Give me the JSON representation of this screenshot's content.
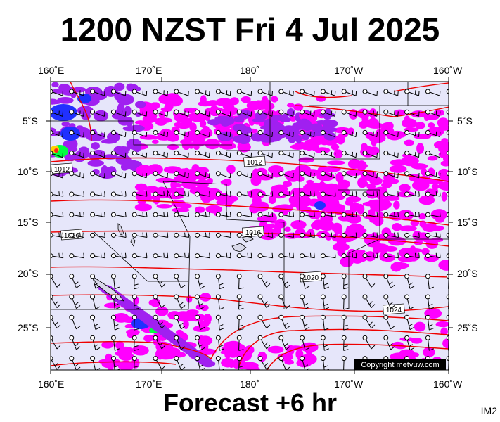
{
  "title": "1200 NZST Fri 4 Jul 2025",
  "subtitle": "Forecast +6 hr",
  "corner_tag": "IM2",
  "copyright": "Copyright metvuw.com",
  "longitude_labels": [
    "160˚E",
    "170˚E",
    "180˚",
    "170˚W",
    "160˚W"
  ],
  "latitude_labels": [
    "5˚S",
    "10˚S",
    "15˚S",
    "20˚S",
    "25˚S"
  ],
  "isobar_labels": [
    "1012",
    "1012",
    "1016",
    "1016",
    "1020",
    "1024"
  ],
  "colors": {
    "background": "#e6e6fa",
    "rain_light": "#ff00ff",
    "rain_medium": "#a020f0",
    "rain_heavy": "#2030ff",
    "rain_extreme": "#00ff40",
    "isobar": "#ee0000"
  }
}
